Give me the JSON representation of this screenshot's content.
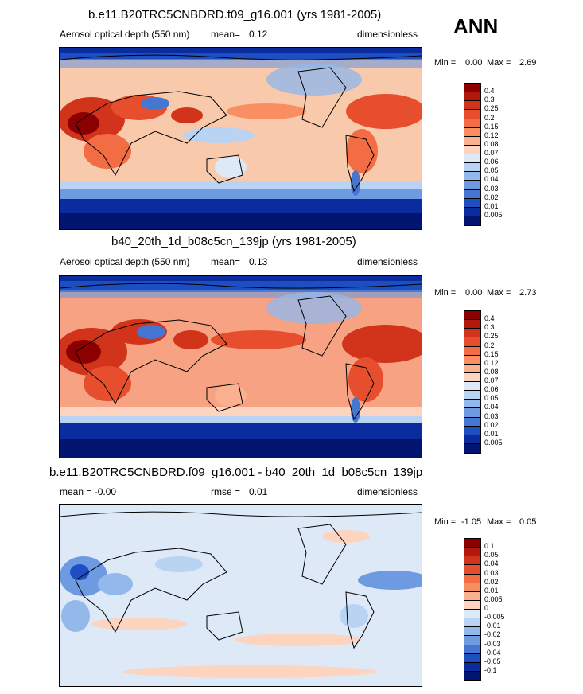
{
  "season_label": "ANN",
  "panels": [
    {
      "title": "b.e11.B20TRC5CNBDRD.f09_g16.001 (yrs 1981-2005)",
      "left_label": "Aerosol optical depth (550 nm)",
      "stat_label": "mean=",
      "stat_value": "0.12",
      "right_label": "dimensionless",
      "min_label": "Min =",
      "min_value": "0.00",
      "max_label": "Max =",
      "max_value": "2.69",
      "colorbar": [
        "0.4",
        "0.3",
        "0.25",
        "0.2",
        "0.15",
        "0.12",
        "0.08",
        "0.07",
        "0.06",
        "0.05",
        "0.04",
        "0.03",
        "0.02",
        "0.01",
        "0.005"
      ],
      "colors": [
        "#8b0000",
        "#b2180e",
        "#d2341b",
        "#e64e2d",
        "#f26d44",
        "#f88e62",
        "#fbb08f",
        "#fdd4bf",
        "#dde9f7",
        "#b9d3f2",
        "#93b8ea",
        "#6d9ae0",
        "#4576d2",
        "#1d4fc2",
        "#0b2c9e",
        "#001470"
      ]
    },
    {
      "title": "b40_20th_1d_b08c5cn_139jp (yrs 1981-2005)",
      "left_label": "Aerosol optical depth (550 nm)",
      "stat_label": "mean=",
      "stat_value": "0.13",
      "right_label": "dimensionless",
      "min_label": "Min =",
      "min_value": "0.00",
      "max_label": "Max =",
      "max_value": "2.73",
      "colorbar": [
        "0.4",
        "0.3",
        "0.25",
        "0.2",
        "0.15",
        "0.12",
        "0.08",
        "0.07",
        "0.06",
        "0.05",
        "0.04",
        "0.03",
        "0.02",
        "0.01",
        "0.005"
      ],
      "colors": [
        "#8b0000",
        "#b2180e",
        "#d2341b",
        "#e64e2d",
        "#f26d44",
        "#f88e62",
        "#fbb08f",
        "#fdd4bf",
        "#dde9f7",
        "#b9d3f2",
        "#93b8ea",
        "#6d9ae0",
        "#4576d2",
        "#1d4fc2",
        "#0b2c9e",
        "#001470"
      ]
    },
    {
      "title": "b.e11.B20TRC5CNBDRD.f09_g16.001 - b40_20th_1d_b08c5cn_139jp",
      "left_label": "mean =  -0.00",
      "stat_label": "rmse =",
      "stat_value": "0.01",
      "right_label": "dimensionless",
      "min_label": "Min =",
      "min_value": "-1.05",
      "max_label": "Max =",
      "max_value": "0.05",
      "colorbar": [
        "0.1",
        "0.05",
        "0.04",
        "0.03",
        "0.02",
        "0.01",
        "0.005",
        "0",
        "-0.005",
        "-0.01",
        "-0.02",
        "-0.03",
        "-0.04",
        "-0.05",
        "-0.1"
      ],
      "colors": [
        "#8b0000",
        "#b2180e",
        "#d2341b",
        "#e64e2d",
        "#f26d44",
        "#f88e62",
        "#fbb08f",
        "#fdd4bf",
        "#dde9f7",
        "#b9d3f2",
        "#93b8ea",
        "#6d9ae0",
        "#4576d2",
        "#1d4fc2",
        "#0b2c9e",
        "#001470"
      ]
    }
  ],
  "chart_data": [
    {
      "type": "heatmap",
      "title": "b.e11.B20TRC5CNBDRD.f09_g16.001 (yrs 1981-2005)",
      "variable": "Aerosol optical depth (550 nm)",
      "units": "dimensionless",
      "mean": 0.12,
      "min": 0.0,
      "max": 2.69,
      "contour_levels": [
        0.005,
        0.01,
        0.02,
        0.03,
        0.04,
        0.05,
        0.06,
        0.07,
        0.08,
        0.12,
        0.15,
        0.2,
        0.25,
        0.3,
        0.4
      ]
    },
    {
      "type": "heatmap",
      "title": "b40_20th_1d_b08c5cn_139jp (yrs 1981-2005)",
      "variable": "Aerosol optical depth (550 nm)",
      "units": "dimensionless",
      "mean": 0.13,
      "min": 0.0,
      "max": 2.73,
      "contour_levels": [
        0.005,
        0.01,
        0.02,
        0.03,
        0.04,
        0.05,
        0.06,
        0.07,
        0.08,
        0.12,
        0.15,
        0.2,
        0.25,
        0.3,
        0.4
      ]
    },
    {
      "type": "heatmap",
      "title": "b.e11.B20TRC5CNBDRD.f09_g16.001 - b40_20th_1d_b08c5cn_139jp",
      "units": "dimensionless",
      "mean": -0.0,
      "rmse": 0.01,
      "min": -1.05,
      "max": 0.05,
      "contour_levels": [
        -0.1,
        -0.05,
        -0.04,
        -0.03,
        -0.02,
        -0.01,
        -0.005,
        0,
        0.005,
        0.01,
        0.02,
        0.03,
        0.04,
        0.05,
        0.1
      ]
    }
  ]
}
